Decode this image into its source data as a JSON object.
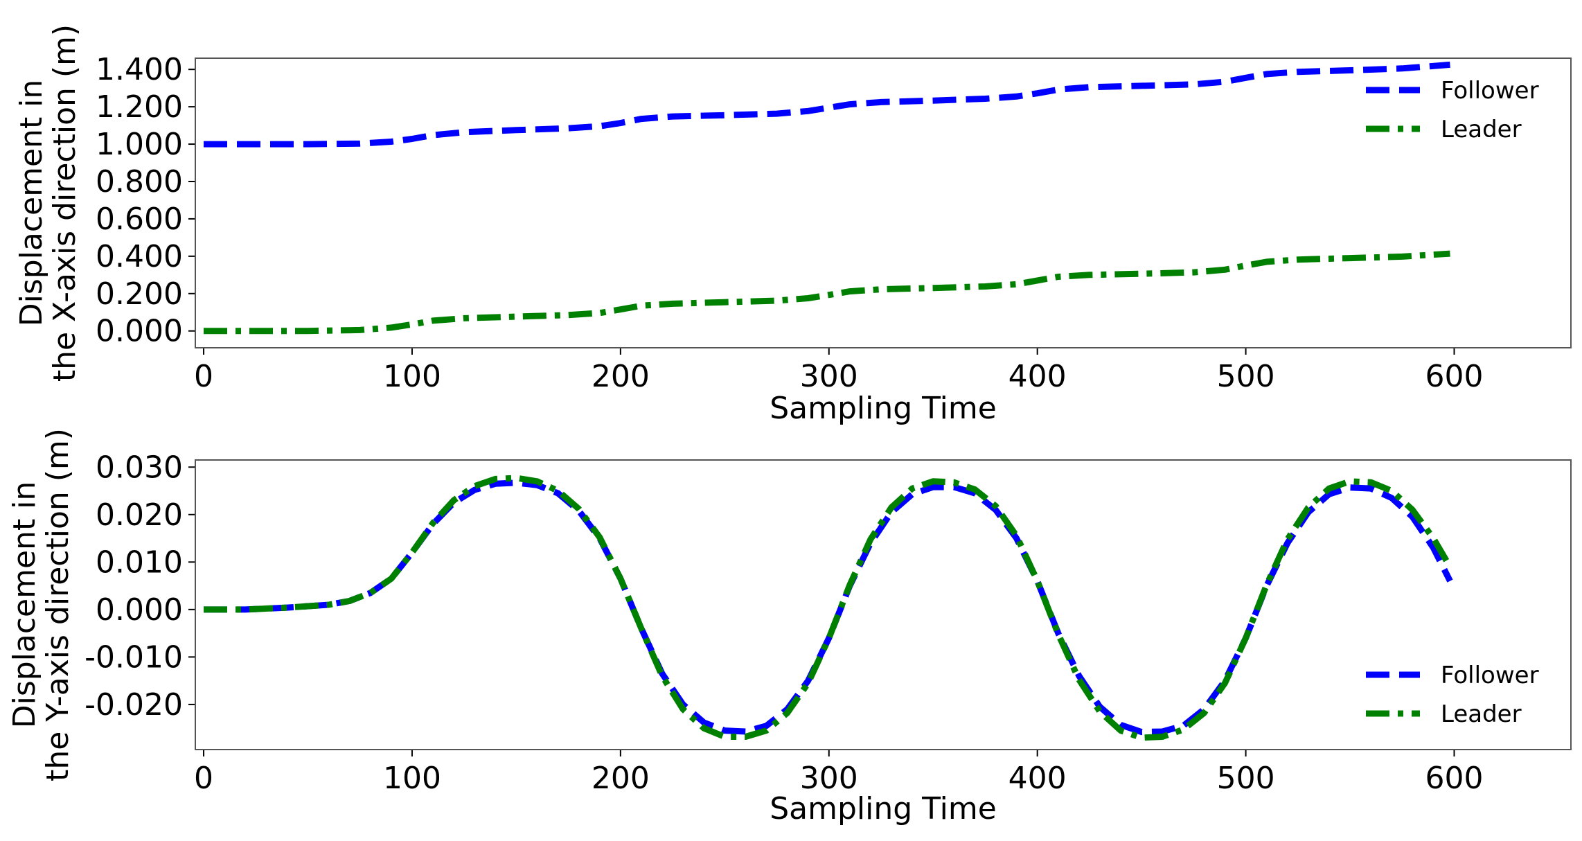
{
  "chart_data": [
    {
      "type": "line",
      "title": "",
      "xlabel": "Sampling Time",
      "ylabel_lines": [
        "Displacement in",
        "the X-axis direction (m)"
      ],
      "xlim": [
        -4,
        656
      ],
      "ylim": [
        -0.09,
        1.46
      ],
      "xticks": [
        0,
        100,
        200,
        300,
        400,
        500,
        600
      ],
      "xtick_labels": [
        "0",
        "100",
        "200",
        "300",
        "400",
        "500",
        "600"
      ],
      "yticks": [
        0,
        0.2,
        0.4,
        0.6,
        0.8,
        1.0,
        1.2,
        1.4
      ],
      "ytick_labels": [
        "0.000",
        "0.200",
        "0.400",
        "0.600",
        "0.800",
        "1.000",
        "1.200",
        "1.400"
      ],
      "legend": {
        "placement": "top-right",
        "entries": [
          "Follower",
          "Leader"
        ]
      },
      "series": [
        {
          "name": "Follower",
          "color": "#0000ff",
          "style": "dashed",
          "x": [
            0,
            25,
            50,
            75,
            90,
            100,
            110,
            125,
            150,
            175,
            190,
            200,
            210,
            225,
            250,
            275,
            290,
            300,
            310,
            325,
            350,
            375,
            390,
            400,
            410,
            425,
            450,
            475,
            490,
            500,
            510,
            525,
            550,
            575,
            598
          ],
          "y": [
            1.0,
            1.0,
            1.0,
            1.003,
            1.013,
            1.028,
            1.048,
            1.064,
            1.075,
            1.085,
            1.096,
            1.113,
            1.135,
            1.148,
            1.155,
            1.163,
            1.177,
            1.195,
            1.213,
            1.225,
            1.233,
            1.243,
            1.255,
            1.272,
            1.292,
            1.305,
            1.312,
            1.32,
            1.334,
            1.355,
            1.375,
            1.387,
            1.395,
            1.405,
            1.425
          ]
        },
        {
          "name": "Leader",
          "color": "#008000",
          "style": "dashdot",
          "x": [
            0,
            25,
            50,
            75,
            90,
            100,
            110,
            125,
            150,
            175,
            190,
            200,
            210,
            225,
            250,
            275,
            290,
            300,
            310,
            325,
            350,
            375,
            390,
            400,
            410,
            425,
            450,
            475,
            490,
            500,
            510,
            525,
            550,
            575,
            598
          ],
          "y": [
            0.0,
            0.0,
            0.0,
            0.005,
            0.018,
            0.035,
            0.055,
            0.068,
            0.077,
            0.085,
            0.096,
            0.115,
            0.135,
            0.146,
            0.154,
            0.162,
            0.175,
            0.193,
            0.212,
            0.223,
            0.23,
            0.238,
            0.25,
            0.27,
            0.29,
            0.3,
            0.306,
            0.314,
            0.328,
            0.35,
            0.37,
            0.382,
            0.39,
            0.398,
            0.414
          ]
        }
      ]
    },
    {
      "type": "line",
      "title": "",
      "xlabel": "Sampling Time",
      "ylabel_lines": [
        "Displacement in",
        "the Y-axis direction  (m)"
      ],
      "xlim": [
        -4,
        656
      ],
      "ylim": [
        -0.0295,
        0.0315
      ],
      "xticks": [
        0,
        100,
        200,
        300,
        400,
        500,
        600
      ],
      "xtick_labels": [
        "0",
        "100",
        "200",
        "300",
        "400",
        "500",
        "600"
      ],
      "yticks": [
        -0.02,
        -0.01,
        0,
        0.01,
        0.02,
        0.03
      ],
      "ytick_labels": [
        "-0.020",
        "-0.010",
        "0.000",
        "0.010",
        "0.020",
        "0.030"
      ],
      "legend": {
        "placement": "bottom-right",
        "entries": [
          "Follower",
          "Leader"
        ]
      },
      "series": [
        {
          "name": "Follower",
          "color": "#0000ff",
          "style": "dashed",
          "x": [
            0,
            20,
            40,
            60,
            70,
            80,
            90,
            100,
            110,
            120,
            130,
            140,
            150,
            160,
            170,
            180,
            190,
            200,
            210,
            220,
            230,
            240,
            250,
            260,
            270,
            280,
            290,
            300,
            310,
            320,
            330,
            340,
            350,
            360,
            370,
            380,
            390,
            400,
            410,
            420,
            430,
            440,
            450,
            460,
            470,
            480,
            490,
            500,
            510,
            520,
            530,
            540,
            550,
            560,
            570,
            580,
            590,
            598
          ],
          "y": [
            0.0,
            0.0,
            0.0004,
            0.001,
            0.0018,
            0.0035,
            0.0065,
            0.012,
            0.018,
            0.0225,
            0.0252,
            0.0265,
            0.0267,
            0.0262,
            0.0245,
            0.0208,
            0.015,
            0.0065,
            -0.004,
            -0.0135,
            -0.02,
            -0.0238,
            -0.0255,
            -0.0257,
            -0.0245,
            -0.021,
            -0.015,
            -0.006,
            0.005,
            0.014,
            0.0205,
            0.0243,
            0.0258,
            0.0258,
            0.0245,
            0.021,
            0.015,
            0.006,
            -0.005,
            -0.014,
            -0.0205,
            -0.0243,
            -0.0258,
            -0.0257,
            -0.0245,
            -0.021,
            -0.015,
            -0.006,
            0.005,
            0.014,
            0.0205,
            0.0243,
            0.0257,
            0.0255,
            0.0235,
            0.0195,
            0.013,
            0.006
          ]
        },
        {
          "name": "Leader",
          "color": "#008000",
          "style": "dashdot",
          "x": [
            0,
            20,
            40,
            60,
            70,
            80,
            90,
            100,
            110,
            120,
            130,
            140,
            150,
            160,
            170,
            180,
            190,
            200,
            210,
            220,
            230,
            240,
            250,
            260,
            270,
            280,
            290,
            300,
            310,
            320,
            330,
            340,
            350,
            360,
            370,
            380,
            390,
            400,
            410,
            420,
            430,
            440,
            450,
            460,
            470,
            480,
            490,
            500,
            510,
            520,
            530,
            540,
            550,
            560,
            570,
            580,
            590,
            598
          ],
          "y": [
            0.0,
            0.0,
            0.0004,
            0.001,
            0.0018,
            0.0035,
            0.0065,
            0.012,
            0.0182,
            0.023,
            0.026,
            0.0275,
            0.0277,
            0.027,
            0.025,
            0.0212,
            0.0152,
            0.0065,
            -0.004,
            -0.014,
            -0.021,
            -0.025,
            -0.0268,
            -0.0268,
            -0.0255,
            -0.0218,
            -0.0155,
            -0.006,
            0.0052,
            0.0148,
            0.0215,
            0.0255,
            0.027,
            0.0268,
            0.0253,
            0.0218,
            0.0155,
            0.006,
            -0.0052,
            -0.0148,
            -0.0215,
            -0.0255,
            -0.027,
            -0.0268,
            -0.0253,
            -0.0218,
            -0.0155,
            -0.006,
            0.0052,
            0.0148,
            0.0215,
            0.0255,
            0.027,
            0.0268,
            0.025,
            0.021,
            0.015,
            0.009
          ]
        }
      ]
    }
  ]
}
